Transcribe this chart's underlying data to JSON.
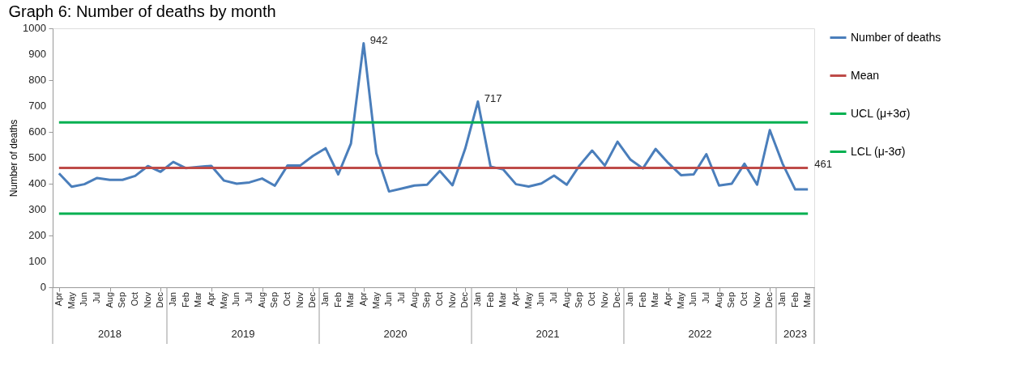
{
  "chart_data": {
    "type": "line",
    "title": "Graph 6: Number of deaths by month",
    "ylabel": "Number of deaths",
    "categories": [
      "Apr",
      "May",
      "Jun",
      "Jul",
      "Aug",
      "Sep",
      "Oct",
      "Nov",
      "Dec",
      "Jan",
      "Feb",
      "Mar",
      "Apr",
      "May",
      "Jun",
      "Jul",
      "Aug",
      "Sep",
      "Oct",
      "Nov",
      "Dec",
      "Jan",
      "Feb",
      "Mar",
      "Apr",
      "May",
      "Jun",
      "Jul",
      "Aug",
      "Sep",
      "Oct",
      "Nov",
      "Dec",
      "Jan",
      "Feb",
      "Mar",
      "Apr",
      "May",
      "Jun",
      "Jul",
      "Aug",
      "Sep",
      "Oct",
      "Nov",
      "Dec",
      "Jan",
      "Feb",
      "Mar",
      "Apr",
      "May",
      "Jun",
      "Jul",
      "Aug",
      "Sep",
      "Oct",
      "Nov",
      "Dec",
      "Jan",
      "Feb",
      "Mar"
    ],
    "series": [
      {
        "name": "Number of deaths",
        "color": "#4a7ebb",
        "values": [
          440,
          388,
          398,
          422,
          415,
          415,
          430,
          468,
          446,
          484,
          460,
          465,
          469,
          412,
          400,
          405,
          420,
          392,
          470,
          470,
          507,
          537,
          436,
          555,
          942,
          517,
          370,
          381,
          393,
          396,
          449,
          394,
          535,
          717,
          466,
          455,
          398,
          389,
          401,
          431,
          396,
          470,
          528,
          470,
          562,
          494,
          459,
          534,
          480,
          433,
          436,
          514,
          393,
          400,
          477,
          396,
          607,
          478,
          378,
          378
        ],
        "value_labels": [
          null,
          null,
          null,
          null,
          null,
          null,
          null,
          null,
          null,
          null,
          null,
          null,
          null,
          null,
          null,
          null,
          null,
          null,
          null,
          null,
          null,
          null,
          null,
          null,
          "942",
          null,
          null,
          null,
          null,
          null,
          null,
          null,
          null,
          "717",
          null,
          null,
          null,
          null,
          null,
          null,
          null,
          null,
          null,
          null,
          null,
          null,
          null,
          null,
          null,
          null,
          null,
          null,
          null,
          null,
          null,
          null,
          null,
          null,
          null,
          null
        ]
      },
      {
        "name": "Mean",
        "color": "#be4b48",
        "values": [
          461,
          461,
          461,
          461,
          461,
          461,
          461,
          461,
          461,
          461,
          461,
          461,
          461,
          461,
          461,
          461,
          461,
          461,
          461,
          461,
          461,
          461,
          461,
          461,
          461,
          461,
          461,
          461,
          461,
          461,
          461,
          461,
          461,
          461,
          461,
          461,
          461,
          461,
          461,
          461,
          461,
          461,
          461,
          461,
          461,
          461,
          461,
          461,
          461,
          461,
          461,
          461,
          461,
          461,
          461,
          461,
          461,
          461,
          461,
          461
        ],
        "value_labels": [
          null,
          null,
          null,
          null,
          null,
          null,
          null,
          null,
          null,
          null,
          null,
          null,
          null,
          null,
          null,
          null,
          null,
          null,
          null,
          null,
          null,
          null,
          null,
          null,
          null,
          null,
          null,
          null,
          null,
          null,
          null,
          null,
          null,
          null,
          null,
          null,
          null,
          null,
          null,
          null,
          null,
          null,
          null,
          null,
          null,
          null,
          null,
          null,
          null,
          null,
          null,
          null,
          null,
          null,
          null,
          null,
          null,
          null,
          null,
          "461"
        ]
      },
      {
        "name": "UCL (μ+3σ)",
        "color": "#00b050",
        "values": [
          637,
          637,
          637,
          637,
          637,
          637,
          637,
          637,
          637,
          637,
          637,
          637,
          637,
          637,
          637,
          637,
          637,
          637,
          637,
          637,
          637,
          637,
          637,
          637,
          637,
          637,
          637,
          637,
          637,
          637,
          637,
          637,
          637,
          637,
          637,
          637,
          637,
          637,
          637,
          637,
          637,
          637,
          637,
          637,
          637,
          637,
          637,
          637,
          637,
          637,
          637,
          637,
          637,
          637,
          637,
          637,
          637,
          637,
          637,
          637
        ]
      },
      {
        "name": "LCL (μ-3σ)",
        "color": "#00b050",
        "values": [
          284,
          284,
          284,
          284,
          284,
          284,
          284,
          284,
          284,
          284,
          284,
          284,
          284,
          284,
          284,
          284,
          284,
          284,
          284,
          284,
          284,
          284,
          284,
          284,
          284,
          284,
          284,
          284,
          284,
          284,
          284,
          284,
          284,
          284,
          284,
          284,
          284,
          284,
          284,
          284,
          284,
          284,
          284,
          284,
          284,
          284,
          284,
          284,
          284,
          284,
          284,
          284,
          284,
          284,
          284,
          284,
          284,
          284,
          284,
          284
        ]
      }
    ],
    "annotations": [
      "2018",
      "2019",
      "2020",
      "2021",
      "2022",
      "2023"
    ],
    "ylim": [
      0,
      1000
    ],
    "yticks": [
      0,
      100,
      200,
      300,
      400,
      500,
      600,
      700,
      800,
      900,
      1000
    ],
    "grid": false,
    "legend": "right",
    "marker": "none",
    "line_style": "solid"
  }
}
